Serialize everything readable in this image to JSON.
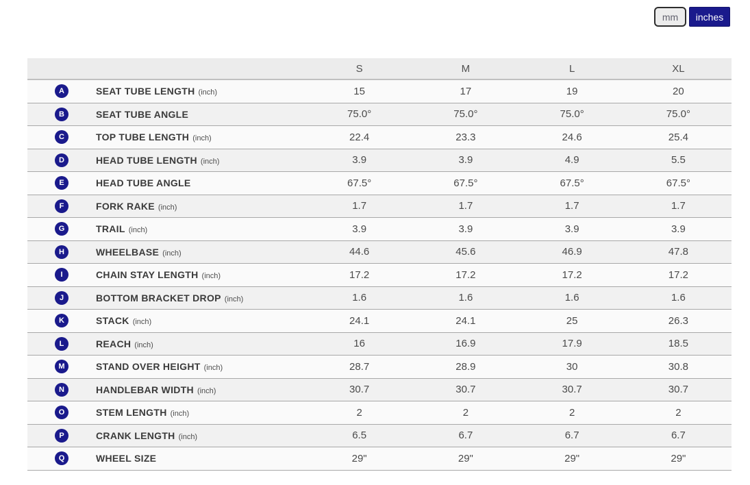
{
  "unit_toggle": {
    "mm_label": "mm",
    "inches_label": "inches",
    "selected": "inches"
  },
  "colors": {
    "accent_navy": "#1a1a8c",
    "header_bg": "#ececec",
    "row_odd_bg": "#fafafa",
    "row_even_bg": "#f1f1f1",
    "divider": "#a8a8a8"
  },
  "table": {
    "size_headers": [
      "S",
      "M",
      "L",
      "XL"
    ],
    "rows": [
      {
        "letter": "A",
        "label": "SEAT TUBE LENGTH",
        "unit": "(inch)",
        "values": [
          "15",
          "17",
          "19",
          "20"
        ]
      },
      {
        "letter": "B",
        "label": "SEAT TUBE ANGLE",
        "unit": "",
        "values": [
          "75.0°",
          "75.0°",
          "75.0°",
          "75.0°"
        ]
      },
      {
        "letter": "C",
        "label": "TOP TUBE LENGTH",
        "unit": "(inch)",
        "values": [
          "22.4",
          "23.3",
          "24.6",
          "25.4"
        ]
      },
      {
        "letter": "D",
        "label": "HEAD TUBE LENGTH",
        "unit": "(inch)",
        "values": [
          "3.9",
          "3.9",
          "4.9",
          "5.5"
        ]
      },
      {
        "letter": "E",
        "label": "HEAD TUBE ANGLE",
        "unit": "",
        "values": [
          "67.5°",
          "67.5°",
          "67.5°",
          "67.5°"
        ]
      },
      {
        "letter": "F",
        "label": "FORK RAKE",
        "unit": "(inch)",
        "values": [
          "1.7",
          "1.7",
          "1.7",
          "1.7"
        ]
      },
      {
        "letter": "G",
        "label": "TRAIL",
        "unit": "(inch)",
        "values": [
          "3.9",
          "3.9",
          "3.9",
          "3.9"
        ]
      },
      {
        "letter": "H",
        "label": "WHEELBASE",
        "unit": "(inch)",
        "values": [
          "44.6",
          "45.6",
          "46.9",
          "47.8"
        ]
      },
      {
        "letter": "I",
        "label": "CHAIN STAY LENGTH",
        "unit": "(inch)",
        "values": [
          "17.2",
          "17.2",
          "17.2",
          "17.2"
        ]
      },
      {
        "letter": "J",
        "label": "BOTTOM BRACKET DROP",
        "unit": "(inch)",
        "values": [
          "1.6",
          "1.6",
          "1.6",
          "1.6"
        ]
      },
      {
        "letter": "K",
        "label": "STACK",
        "unit": "(inch)",
        "values": [
          "24.1",
          "24.1",
          "25",
          "26.3"
        ]
      },
      {
        "letter": "L",
        "label": "REACH",
        "unit": "(inch)",
        "values": [
          "16",
          "16.9",
          "17.9",
          "18.5"
        ]
      },
      {
        "letter": "M",
        "label": "STAND OVER HEIGHT",
        "unit": "(inch)",
        "values": [
          "28.7",
          "28.9",
          "30",
          "30.8"
        ]
      },
      {
        "letter": "N",
        "label": "HANDLEBAR WIDTH",
        "unit": "(inch)",
        "values": [
          "30.7",
          "30.7",
          "30.7",
          "30.7"
        ]
      },
      {
        "letter": "O",
        "label": "STEM LENGTH",
        "unit": "(inch)",
        "values": [
          "2",
          "2",
          "2",
          "2"
        ]
      },
      {
        "letter": "P",
        "label": "CRANK LENGTH",
        "unit": "(inch)",
        "values": [
          "6.5",
          "6.7",
          "6.7",
          "6.7"
        ]
      },
      {
        "letter": "Q",
        "label": "WHEEL SIZE",
        "unit": "",
        "values": [
          "29\"",
          "29\"",
          "29\"",
          "29\""
        ]
      }
    ]
  }
}
